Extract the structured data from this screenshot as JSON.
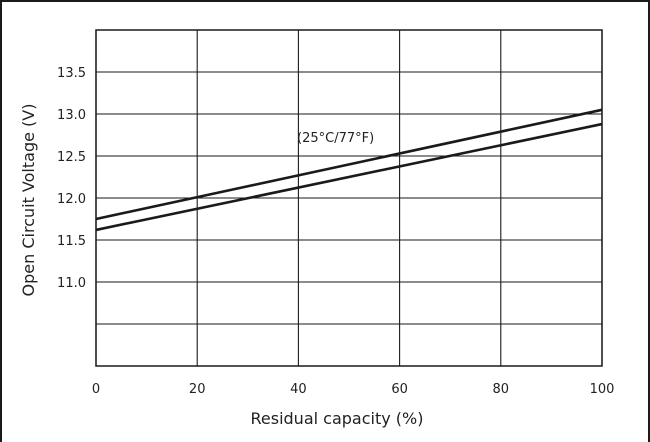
{
  "chart_data": {
    "type": "line",
    "xlabel": "Residual capacity (%)",
    "ylabel": "Open Circuit Voltage (V)",
    "xlim": [
      0,
      100
    ],
    "ylim": [
      10.0,
      14.0
    ],
    "x_ticks": [
      "0",
      "20",
      "40",
      "60",
      "80",
      "100"
    ],
    "y_ticks": [
      "13.5",
      "13.0",
      "12.5",
      "12.0",
      "11.5",
      "11.0"
    ],
    "grid": true,
    "annotation": "(25°C/77°F)",
    "series": [
      {
        "x": [
          0,
          100
        ],
        "values": [
          11.75,
          13.05
        ]
      },
      {
        "x": [
          0,
          100
        ],
        "values": [
          11.62,
          12.88
        ]
      }
    ],
    "colors": {
      "line": "#1a1a1a",
      "grid": "#1a1a1a",
      "text": "#222222"
    }
  }
}
